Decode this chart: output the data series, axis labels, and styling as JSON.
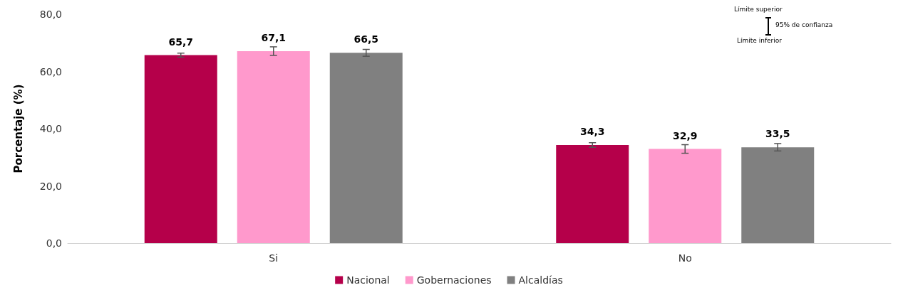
{
  "chart_data": {
    "type": "bar",
    "ylabel": "Porcentaje (%)",
    "categories": [
      "Si",
      "No"
    ],
    "series": [
      {
        "name": "Nacional",
        "color": "#b5004a",
        "values": [
          65.7,
          34.3
        ],
        "value_labels": [
          "65,7",
          "34,3"
        ],
        "errors": [
          0.7,
          0.8
        ]
      },
      {
        "name": "Gobernaciones",
        "color": "#ff99cc",
        "values": [
          67.1,
          32.9
        ],
        "value_labels": [
          "67,1",
          "32,9"
        ],
        "errors": [
          1.5,
          1.5
        ]
      },
      {
        "name": "Alcaldías",
        "color": "#808080",
        "values": [
          66.5,
          33.5
        ],
        "value_labels": [
          "66,5",
          "33,5"
        ],
        "errors": [
          1.2,
          1.3
        ]
      }
    ],
    "ylim": [
      0,
      80
    ],
    "yticks": [
      {
        "value": 0,
        "label": "0,0"
      },
      {
        "value": 20,
        "label": "20,0"
      },
      {
        "value": 40,
        "label": "40,0"
      },
      {
        "value": 60,
        "label": "60,0"
      },
      {
        "value": 80,
        "label": "80,0"
      }
    ],
    "grid": false,
    "legend": "bottom",
    "annotations": [
      "Límite superior",
      "95% de confianza",
      "Límite inferior"
    ]
  }
}
